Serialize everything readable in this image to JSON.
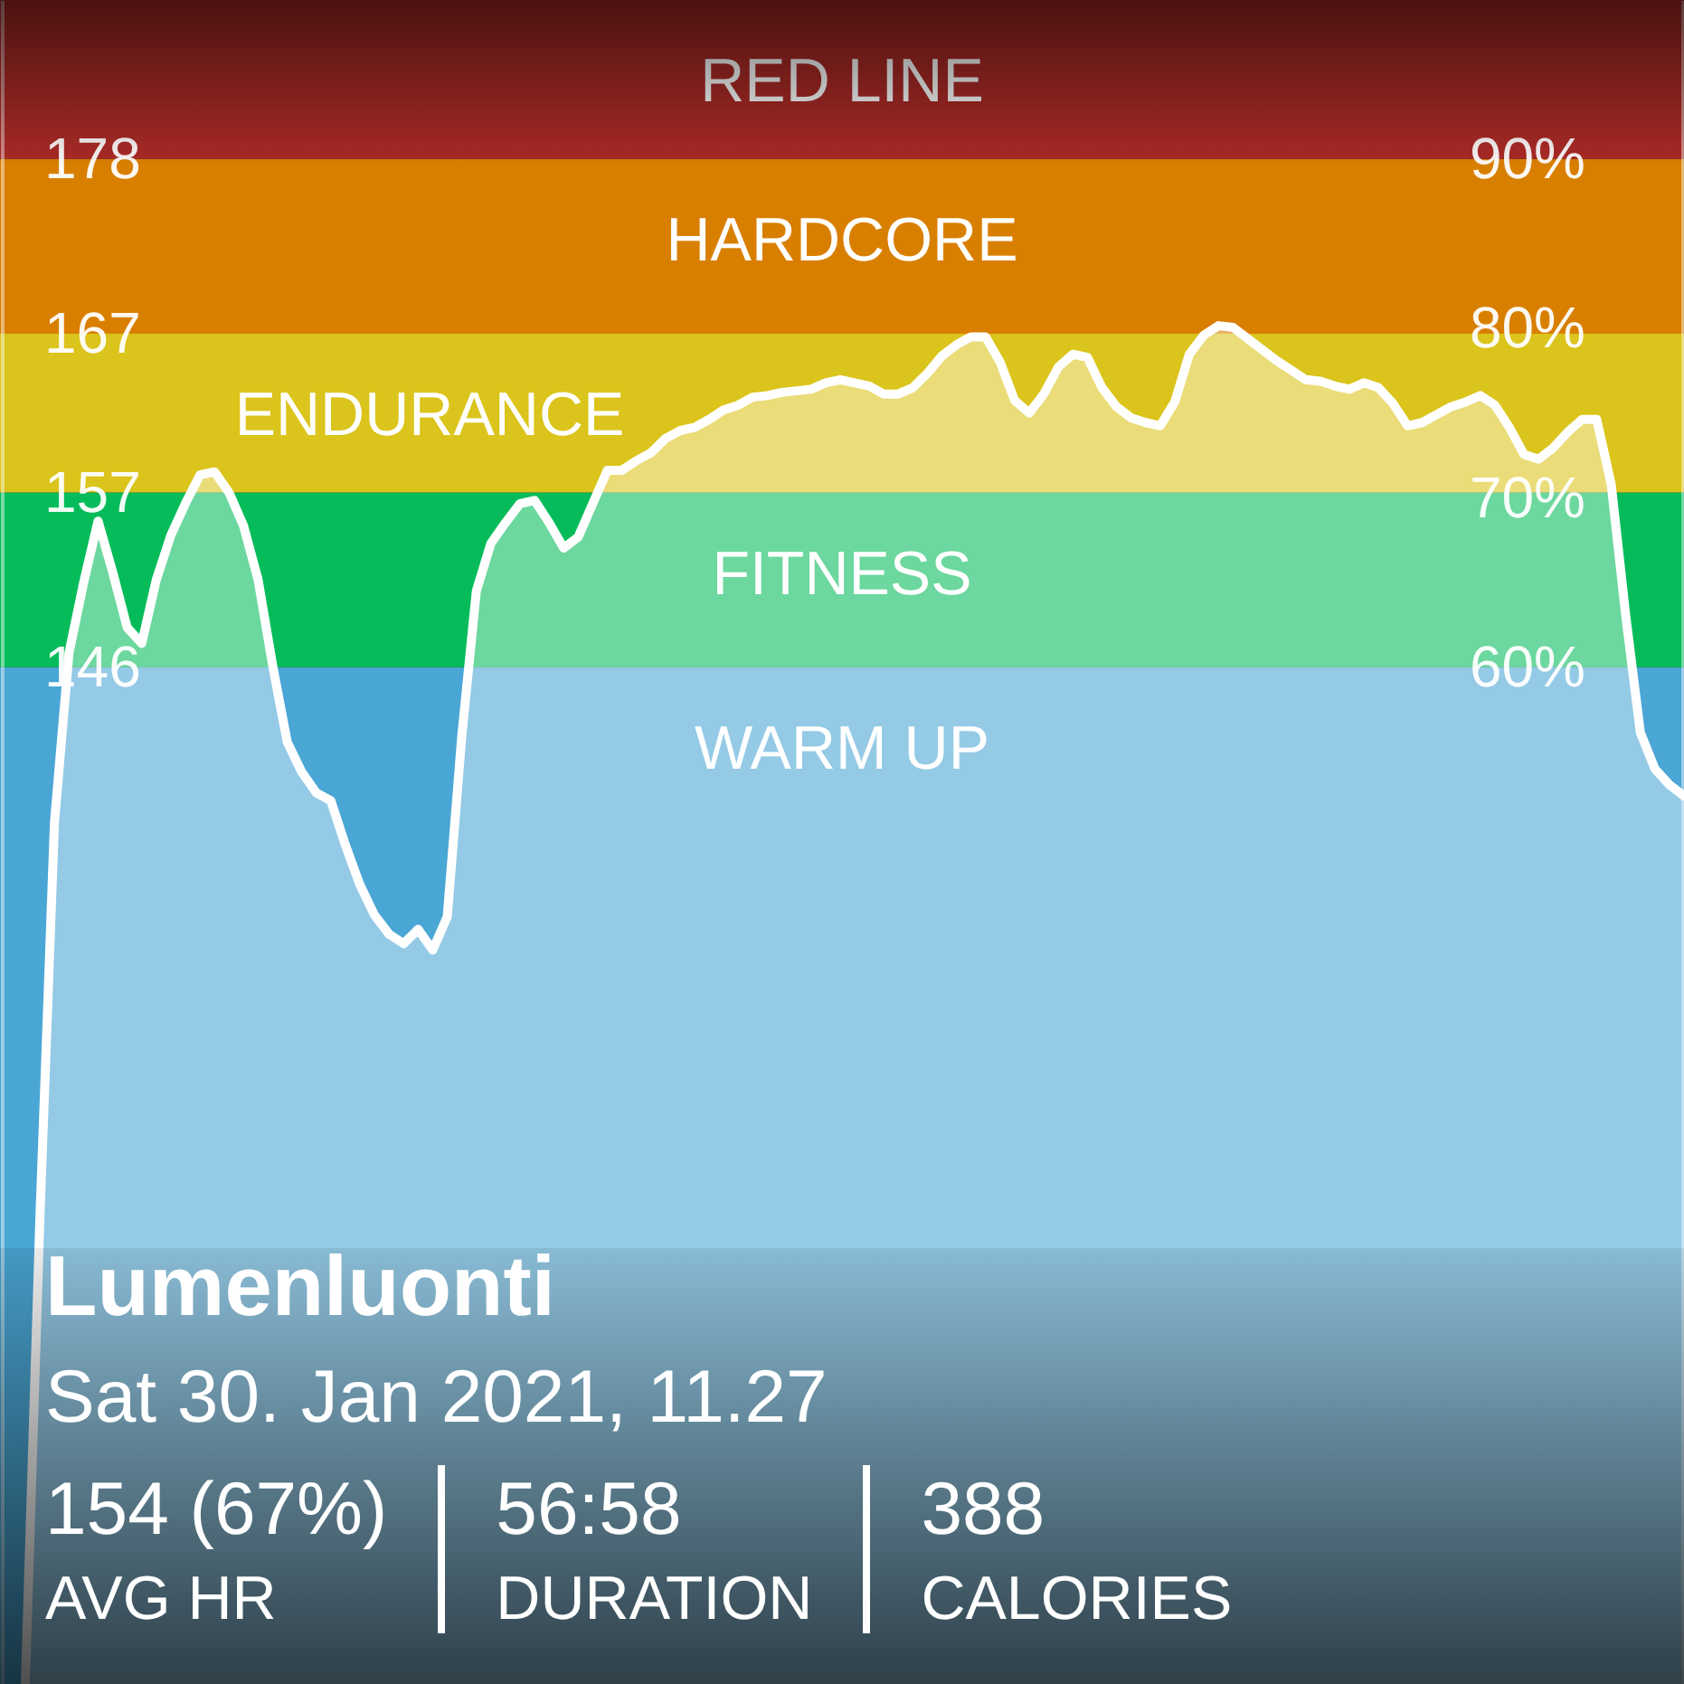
{
  "chart_data": {
    "type": "area",
    "title": "Lumenluonti",
    "subtitle": "Sat 30. Jan 2021, 11.27",
    "categories": [
      null,
      null,
      null,
      null,
      null,
      null,
      null,
      null,
      null,
      null,
      null,
      null,
      null,
      null,
      null,
      null,
      null,
      null,
      null,
      null,
      null,
      null,
      null,
      null,
      null,
      null,
      null,
      null,
      null,
      null,
      null,
      null,
      null,
      null,
      null,
      null,
      null,
      null,
      null,
      null,
      null,
      null,
      null,
      null,
      null,
      null,
      null,
      null,
      null,
      null,
      null,
      null,
      null,
      null,
      null,
      null,
      null,
      null,
      null,
      null,
      null,
      null,
      null,
      null,
      null,
      null,
      null,
      null,
      null,
      null,
      null,
      null,
      null,
      null,
      null,
      null,
      null,
      null,
      null,
      null,
      null,
      null,
      null,
      null,
      null,
      null,
      null,
      null,
      null,
      null,
      null,
      null,
      null,
      null,
      null,
      null,
      null,
      null,
      null,
      null,
      null,
      null,
      null,
      null,
      null,
      null,
      null,
      null,
      null,
      null,
      null,
      null,
      null,
      null,
      null
    ],
    "series": [
      {
        "color": "#ffffff",
        "values": [
          82.0,
          111.3,
          136.2,
          146.9,
          151.3,
          155.2,
          152.0,
          148.5,
          147.5,
          151.5,
          154.3,
          156.3,
          158.1,
          158.3,
          157.0,
          154.9,
          151.5,
          146.1,
          141.3,
          139.4,
          138.1,
          137.6,
          134.8,
          132.3,
          130.4,
          129.2,
          128.6,
          129.5,
          128.2,
          130.3,
          141.7,
          150.8,
          153.8,
          155.1,
          156.3,
          156.5,
          155.1,
          153.5,
          154.2,
          156.3,
          158.4,
          158.4,
          159.0,
          159.5,
          160.4,
          160.9,
          161.1,
          161.6,
          162.2,
          162.5,
          163.0,
          163.1,
          163.3,
          163.4,
          163.5,
          163.9,
          164.1,
          163.9,
          163.7,
          163.2,
          163.2,
          163.6,
          164.5,
          165.6,
          166.3,
          166.8,
          166.8,
          165.2,
          162.8,
          162.0,
          163.2,
          164.9,
          165.7,
          165.5,
          163.6,
          162.4,
          161.7,
          161.4,
          161.2,
          162.7,
          165.7,
          166.9,
          167.5,
          167.4,
          166.7,
          166.0,
          165.3,
          164.7,
          164.1,
          164.0,
          163.7,
          163.5,
          163.9,
          163.6,
          162.6,
          161.2,
          161.4,
          161.9,
          162.4,
          162.7,
          163.1,
          162.5,
          161.1,
          159.4,
          159.1,
          159.8,
          160.8,
          161.6,
          161.6,
          157.5,
          149.2,
          141.9,
          139.6,
          138.6,
          137.9
        ]
      }
    ],
    "ylim": [
      82,
      188
    ],
    "yticks": [
      146,
      157,
      167,
      178
    ],
    "y2lim": [
      0,
      99.4
    ],
    "y2ticks": [
      {
        "value": 60,
        "label": "60%"
      },
      {
        "value": 70,
        "label": "70%"
      },
      {
        "value": 80,
        "label": "80%"
      },
      {
        "value": 90,
        "label": "90%"
      }
    ],
    "bands": [
      {
        "axis": "y",
        "from": 82,
        "to": 146,
        "label": "WARM UP",
        "color": "#4aa6d4"
      },
      {
        "axis": "y",
        "from": 146,
        "to": 157,
        "label": "FITNESS",
        "color": "#06bc5a"
      },
      {
        "axis": "y",
        "from": 157,
        "to": 167,
        "label": "ENDURANCE",
        "color": "#dbc41b"
      },
      {
        "axis": "y",
        "from": 167,
        "to": 178,
        "label": "HARDCORE",
        "color": "#d97f00"
      },
      {
        "axis": "y",
        "from": 178,
        "to": 188,
        "label": "RED LINE",
        "color": "#aa2a26"
      }
    ],
    "annotations": [
      "154 (67%)",
      "AVG HR",
      "56:58",
      "DURATION",
      "388",
      "CALORIES"
    ]
  }
}
